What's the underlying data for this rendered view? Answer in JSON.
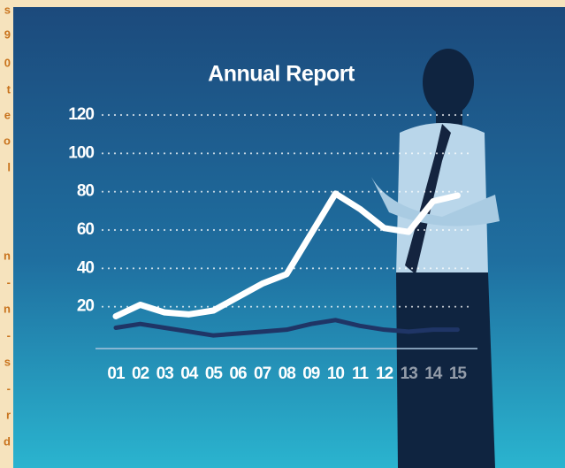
{
  "sidebar": [
    "s",
    "9",
    "0",
    "t",
    "e",
    "o",
    "l",
    "n",
    "-",
    "n",
    "-",
    "s",
    "-",
    "r",
    "d"
  ],
  "chart_data": {
    "type": "line",
    "title": "Annual Report",
    "categories": [
      "01",
      "02",
      "03",
      "04",
      "05",
      "06",
      "07",
      "08",
      "09",
      "10",
      "11",
      "12",
      "13",
      "14",
      "15"
    ],
    "series": [
      {
        "color": "#ffffff",
        "values": [
          15,
          21,
          17,
          16,
          18,
          25,
          32,
          37,
          58,
          79,
          71,
          61,
          59,
          75,
          78
        ]
      },
      {
        "color": "#1f3566",
        "values": [
          9,
          11,
          9,
          7,
          5,
          6,
          7,
          8,
          11,
          13,
          10,
          8,
          7,
          8,
          8
        ]
      }
    ],
    "ylim": [
      0,
      120
    ],
    "yticks": [
      20,
      40,
      60,
      80,
      100,
      120
    ],
    "grid": true
  }
}
